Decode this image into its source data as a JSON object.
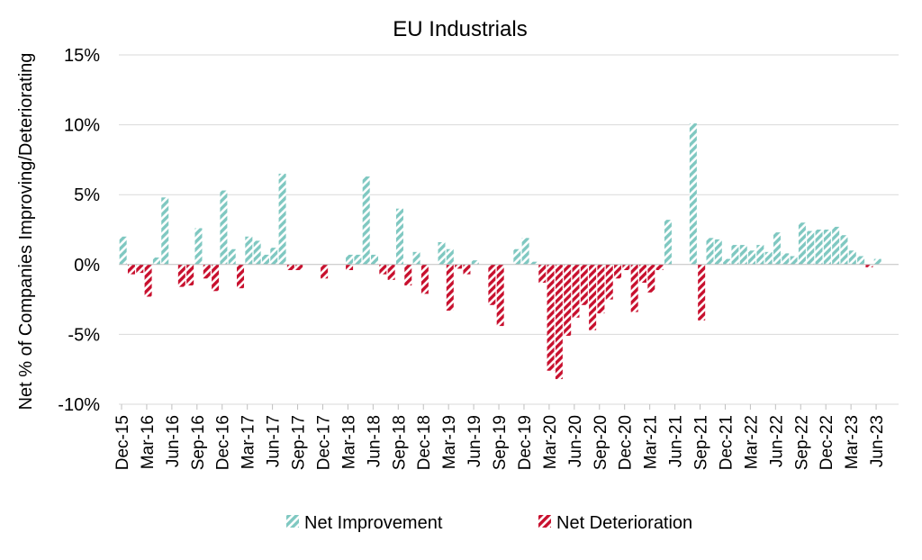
{
  "chart_data": {
    "type": "bar",
    "title": "EU Industrials",
    "ylabel": "Net % of Companies Improving/Deteriorating",
    "xlabel": "",
    "ylim": [
      -10,
      15
    ],
    "yticks": [
      -10,
      -5,
      0,
      5,
      10,
      15
    ],
    "ytick_labels": [
      "-10%",
      "-5%",
      "0%",
      "5%",
      "10%",
      "15%"
    ],
    "grid": true,
    "legend_position": "bottom",
    "x_tick_labels": [
      "Dec-15",
      "Mar-16",
      "Jun-16",
      "Sep-16",
      "Dec-16",
      "Mar-17",
      "Jun-17",
      "Sep-17",
      "Dec-17",
      "Mar-18",
      "Jun-18",
      "Sep-18",
      "Dec-18",
      "Mar-19",
      "Jun-19",
      "Sep-19",
      "Dec-19",
      "Mar-20",
      "Jun-20",
      "Sep-20",
      "Dec-20",
      "Mar-21",
      "Jun-21",
      "Sep-21",
      "Dec-21",
      "Mar-22",
      "Jun-22",
      "Sep-22",
      "Dec-22",
      "Mar-23",
      "Jun-23"
    ],
    "start_month": "Dec-15",
    "colors": {
      "improvement": "#7fc8c1",
      "deterioration": "#c8102e"
    },
    "series": [
      {
        "name": "Net Improvement",
        "values": [
          2.0,
          0,
          0,
          0,
          0.5,
          4.8,
          0,
          0,
          0,
          2.6,
          0,
          0,
          5.3,
          1.1,
          0,
          2.0,
          1.7,
          0.7,
          1.2,
          6.5,
          0,
          0,
          0,
          0,
          0,
          0,
          0,
          0.7,
          0.7,
          6.3,
          0.7,
          0,
          0,
          4.0,
          0,
          0.9,
          0,
          0,
          1.6,
          1.1,
          0,
          0,
          0.3,
          0,
          0,
          0,
          0,
          1.1,
          1.9,
          0.2,
          0,
          0,
          0,
          0,
          0,
          0,
          0,
          0,
          0,
          0,
          0,
          0,
          0,
          0,
          0,
          3.2,
          0,
          0,
          10.1,
          0,
          1.9,
          1.8,
          0.4,
          1.4,
          1.4,
          1.0,
          1.4,
          0.9,
          2.3,
          0.8,
          0.6,
          3.0,
          2.4,
          2.5,
          2.5,
          2.7,
          2.1,
          1.0,
          0.6,
          0,
          0.4
        ]
      },
      {
        "name": "Net Deterioration",
        "values": [
          0,
          -0.7,
          -0.6,
          -2.3,
          0,
          0,
          0,
          -1.6,
          -1.5,
          0,
          -1.0,
          -1.9,
          0,
          0,
          -1.7,
          0,
          0,
          0,
          0,
          0,
          -0.4,
          -0.4,
          0,
          0,
          -1.0,
          0,
          0,
          -0.4,
          0,
          0,
          0,
          -0.7,
          -1.1,
          0,
          -1.5,
          0,
          -2.1,
          0,
          0,
          -3.3,
          -0.3,
          -0.7,
          0,
          0,
          -2.9,
          -4.4,
          0,
          0,
          0,
          0,
          -1.3,
          -7.6,
          -8.2,
          -5.1,
          -3.8,
          -2.9,
          -4.7,
          -3.5,
          -2.5,
          -1.0,
          -0.4,
          -3.4,
          -1.3,
          -2.0,
          -0.4,
          0,
          0,
          0,
          0,
          -4.0,
          0,
          0,
          0,
          0,
          0,
          0,
          0,
          0,
          0,
          0,
          0,
          0,
          0,
          0,
          0,
          0,
          0,
          0,
          0,
          -0.2,
          0
        ]
      }
    ]
  }
}
